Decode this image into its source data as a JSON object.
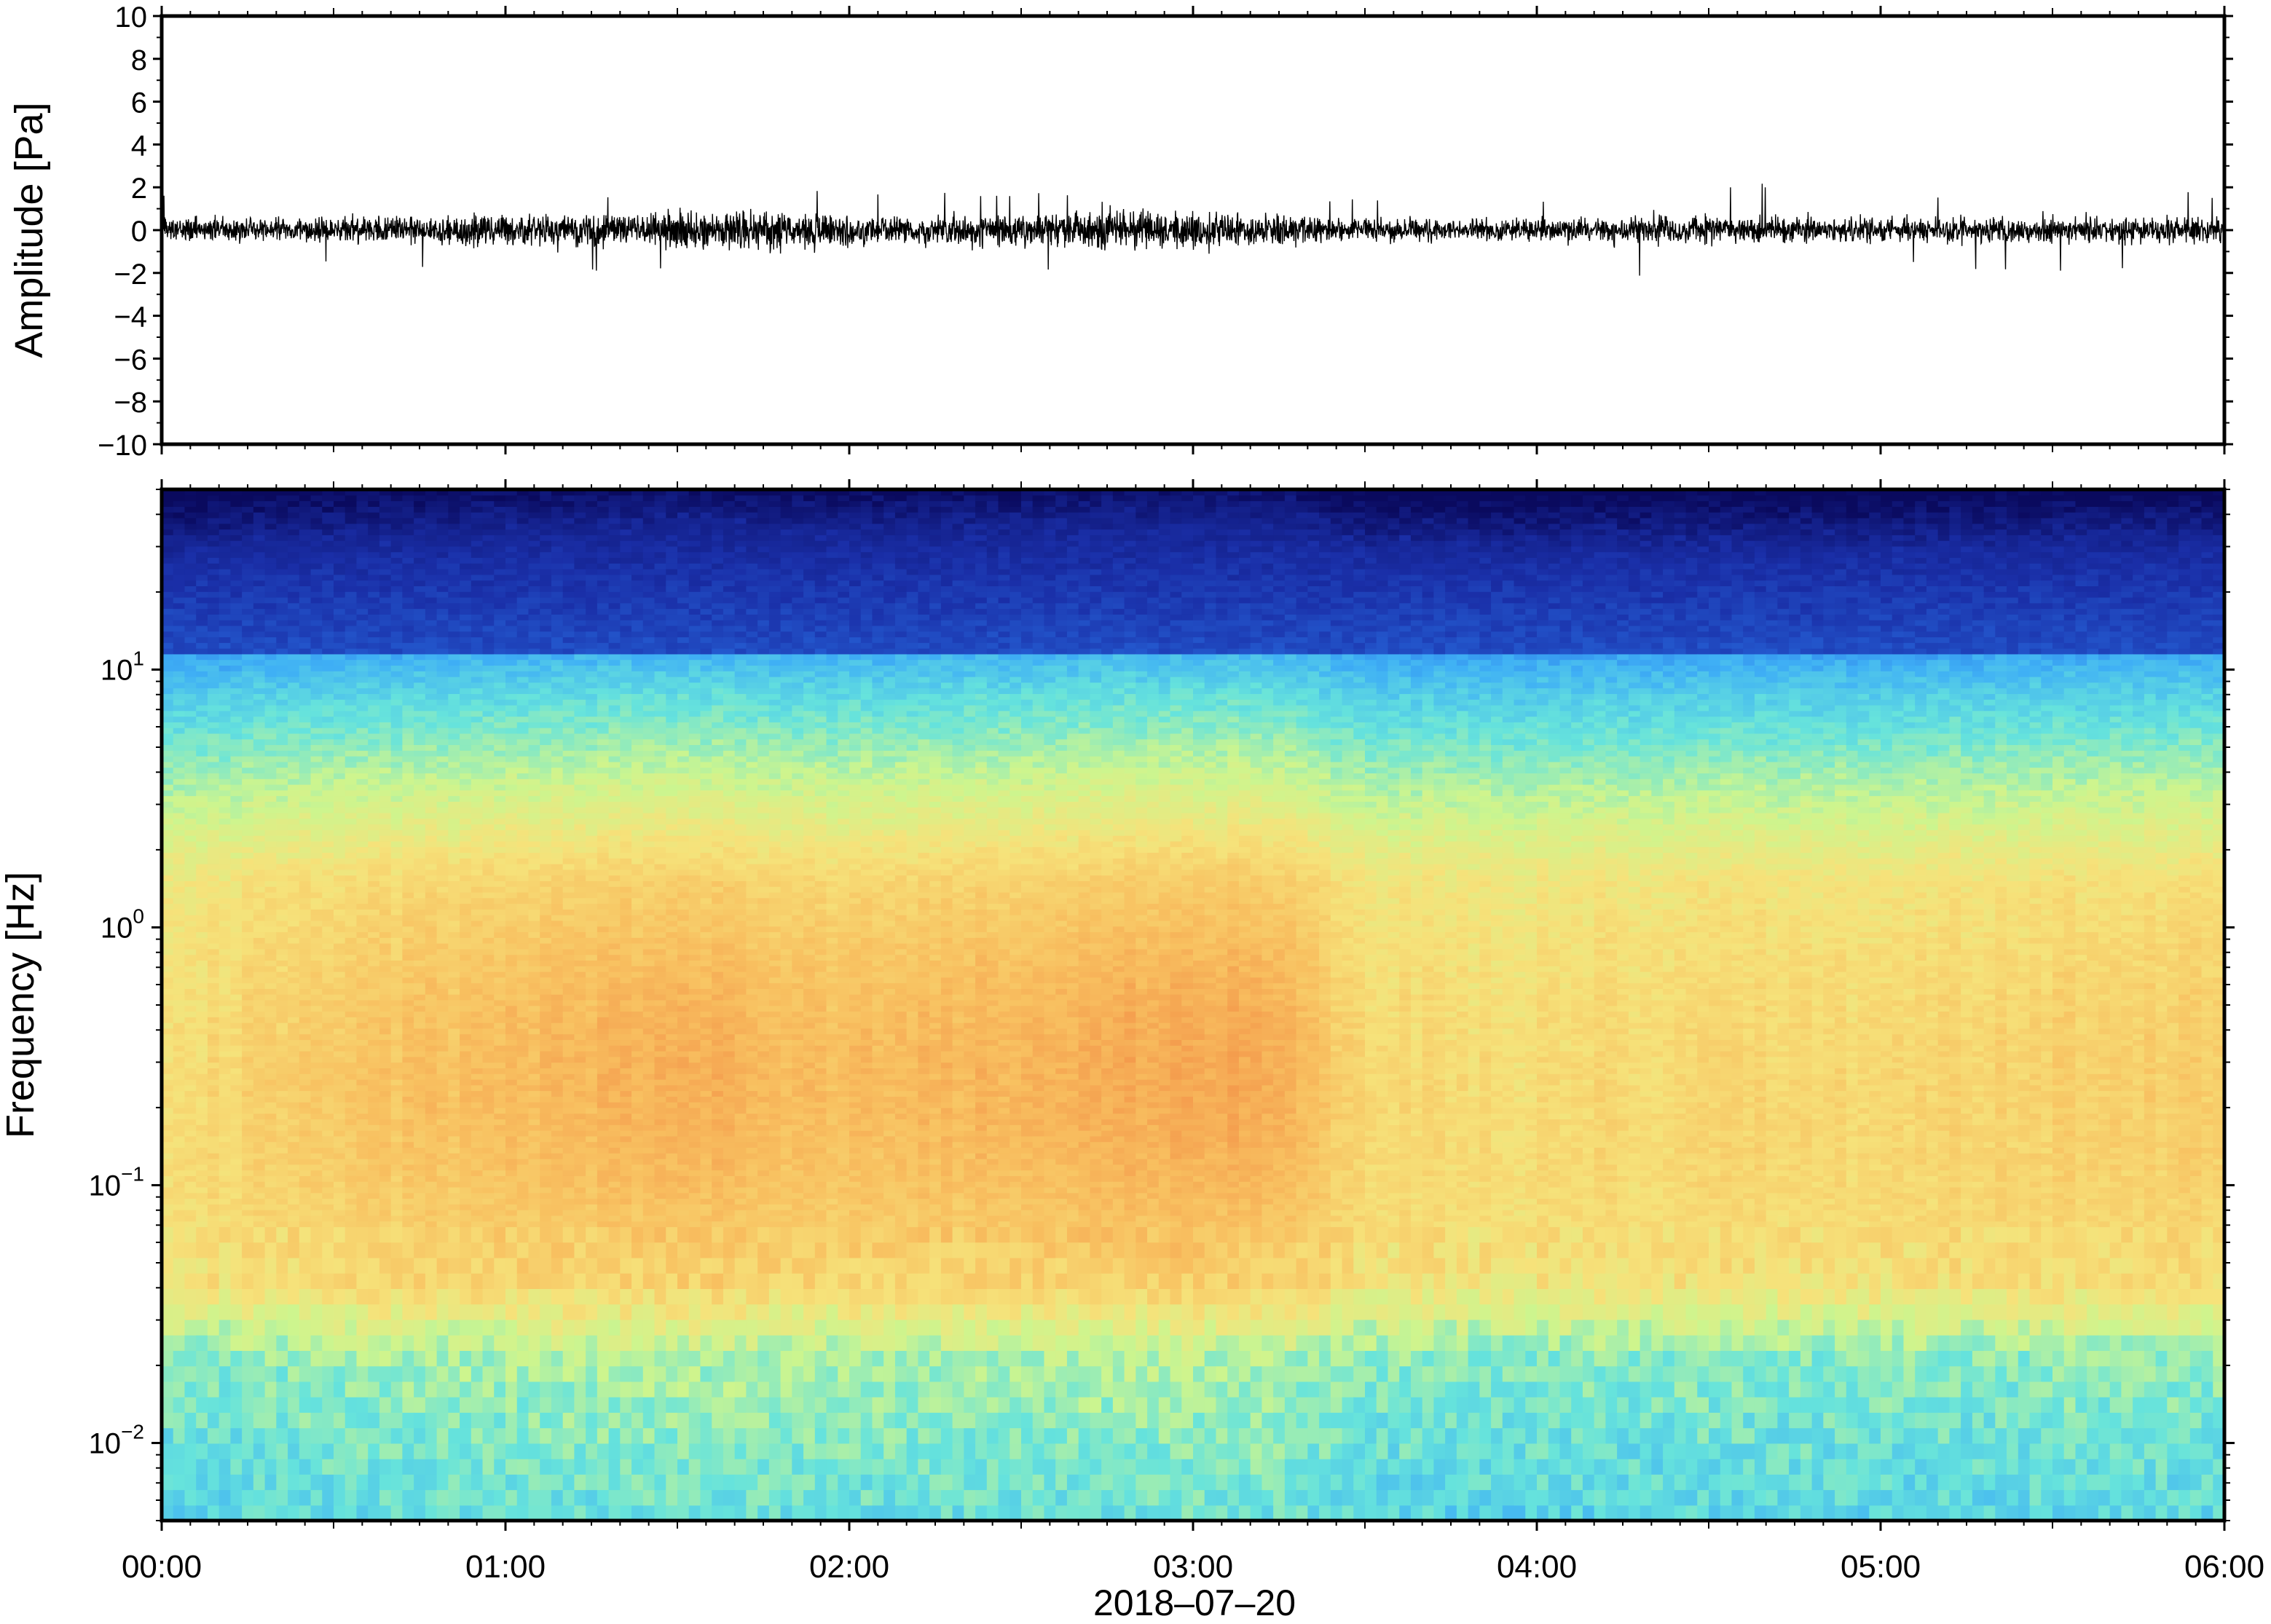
{
  "chart_data": [
    {
      "type": "line",
      "title": "",
      "ylabel": "Amplitude [Pa]",
      "ylim": [
        -10,
        10
      ],
      "yticks": [
        10,
        8,
        6,
        4,
        2,
        0,
        -2,
        -4,
        -6,
        -8,
        -10
      ],
      "ytick_labels": [
        "10",
        "8",
        "6",
        "4",
        "2",
        "0",
        "−2",
        "−4",
        "−6",
        "−8",
        "−10"
      ],
      "x_start": "2018-07-20 00:00",
      "x_end": "2018-07-20 06:00",
      "series_color": "#000000",
      "trace_envelope": {
        "times": [
          "00:00",
          "00:30",
          "01:00",
          "01:30",
          "01:45",
          "02:00",
          "02:30",
          "02:45",
          "03:00",
          "03:15",
          "03:30",
          "04:00",
          "04:25",
          "05:00",
          "05:30",
          "06:00"
        ],
        "typical_abs_pa": [
          0.6,
          0.7,
          0.8,
          1.0,
          1.1,
          0.8,
          0.8,
          1.1,
          1.0,
          0.9,
          0.6,
          0.6,
          0.8,
          0.6,
          0.7,
          0.7
        ],
        "peak_abs_pa": [
          1.8,
          1.6,
          1.9,
          1.9,
          2.3,
          1.7,
          1.8,
          2.1,
          2.0,
          1.9,
          1.4,
          1.5,
          2.5,
          1.8,
          1.9,
          1.8
        ]
      },
      "grid": false
    },
    {
      "type": "heatmap",
      "title": "",
      "xlabel": "2018–07–20",
      "ylabel": "Frequency [Hz]",
      "yscale": "log",
      "ylim": [
        0.005,
        50
      ],
      "yticks": [
        0.01,
        0.1,
        1,
        10
      ],
      "ytick_labels": [
        {
          "base": "10",
          "exp": "−2"
        },
        {
          "base": "10",
          "exp": "−1"
        },
        {
          "base": "10",
          "exp": "0"
        },
        {
          "base": "10",
          "exp": "1"
        }
      ],
      "xticks": [
        "00:00",
        "01:00",
        "02:00",
        "03:00",
        "04:00",
        "05:00",
        "06:00"
      ],
      "colormap": [
        "#0a0a5e",
        "#1a2fa8",
        "#2a75e8",
        "#3fb0f5",
        "#66e3dc",
        "#cdf58e",
        "#f6e27a",
        "#f8c060",
        "#f49a4c",
        "#e8513f"
      ],
      "colorbar": false,
      "grid": false,
      "activity_by_hour": {
        "times": [
          0,
          0.5,
          1,
          1.5,
          2,
          2.5,
          3,
          3.25,
          3.5,
          4,
          4.5,
          5,
          5.5,
          6
        ],
        "level": [
          0.25,
          0.55,
          0.65,
          0.8,
          0.65,
          0.75,
          0.9,
          0.85,
          0.35,
          0.3,
          0.4,
          0.35,
          0.45,
          0.5
        ]
      }
    }
  ]
}
